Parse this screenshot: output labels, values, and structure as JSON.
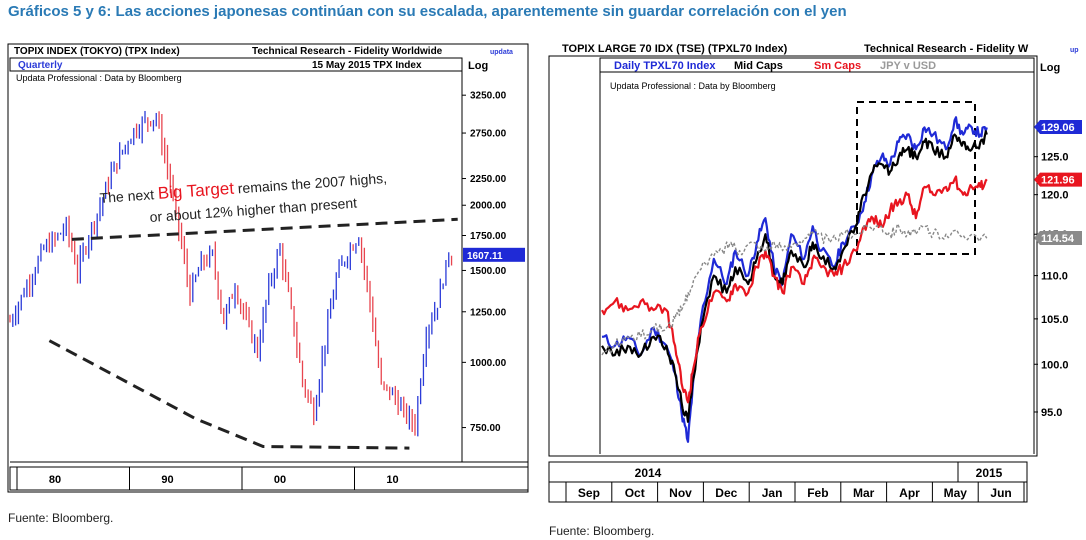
{
  "headline": "Gráficos 5 y 6: Las acciones japonesas continúan con su escalada, aparentemente sin guardar correlación con el yen",
  "charts": {
    "left": {
      "header_left": "TOPIX INDEX (TOKYO) (TPX Index)",
      "header_right": "Technical Research - Fidelity Worldwide",
      "logo": "updata",
      "period": "Quarterly",
      "date_label": "15 May 2015  TPX Index",
      "scale_label": "Log",
      "subheader": "Updata Professional : Data by Bloomberg",
      "annotation_pre": "The next ",
      "annotation_hl": "Big Target",
      "annotation_post": " remains the 2007 highs,",
      "annotation_line2": "or about 12% higher than present",
      "last_value": "1607.11",
      "source": "Fuente: Bloomberg."
    },
    "right": {
      "header_left": "TOPIX LARGE 70 IDX (TSE) (TPXL70 Index)",
      "header_right": "Technical Research - Fidelity W",
      "logo": "up",
      "scale_label": "Log",
      "subheader": "Updata Professional : Data by Bloomberg",
      "last_labels": [
        "129.06",
        "121.96",
        "114.54"
      ],
      "source": "Fuente: Bloomberg."
    }
  },
  "colors": {
    "up": "#2b3bd8",
    "down": "#e8454f",
    "headline": "#2a7ab5",
    "gray": "#8a8a8a"
  },
  "chart_data": [
    {
      "type": "ohlc",
      "title": "TOPIX INDEX (TOKYO) (TPX Index)",
      "y_scale": "log",
      "ylim": [
        650,
        3600
      ],
      "yticks": [
        750,
        1000,
        1250,
        1500,
        1750,
        2000,
        2250,
        2750,
        3250
      ],
      "ytick_labels": [
        "750.00",
        "1000.00",
        "1250.00",
        "1500.00",
        "1750.00",
        "2000.00",
        "2250.00",
        "2750.00",
        "3250.00"
      ],
      "xlim": [
        1976,
        2016
      ],
      "x_labels": [
        {
          "x": 1980,
          "label": "80"
        },
        {
          "x": 1990,
          "label": "90"
        },
        {
          "x": 2000,
          "label": "00"
        },
        {
          "x": 2010,
          "label": "10"
        }
      ],
      "close_path": [
        [
          1976.0,
          1200
        ],
        [
          1977.0,
          1330
        ],
        [
          1978.0,
          1480
        ],
        [
          1979.0,
          1650
        ],
        [
          1980.0,
          1720
        ],
        [
          1981.0,
          1820
        ],
        [
          1982.0,
          1500
        ],
        [
          1983.0,
          1750
        ],
        [
          1984.0,
          1990
        ],
        [
          1985.0,
          2300
        ],
        [
          1986.0,
          2550
        ],
        [
          1987.0,
          2780
        ],
        [
          1988.0,
          2900
        ],
        [
          1989.0,
          2960
        ],
        [
          1990.0,
          2350
        ],
        [
          1991.0,
          1800
        ],
        [
          1992.0,
          1350
        ],
        [
          1993.0,
          1550
        ],
        [
          1994.0,
          1600
        ],
        [
          1995.0,
          1200
        ],
        [
          1996.0,
          1400
        ],
        [
          1997.0,
          1200
        ],
        [
          1998.0,
          1050
        ],
        [
          1999.0,
          1400
        ],
        [
          2000.0,
          1650
        ],
        [
          2001.0,
          1250
        ],
        [
          2002.0,
          920
        ],
        [
          2003.0,
          800
        ],
        [
          2004.0,
          1100
        ],
        [
          2005.0,
          1450
        ],
        [
          2006.0,
          1620
        ],
        [
          2007.0,
          1750
        ],
        [
          2008.0,
          1300
        ],
        [
          2009.0,
          900
        ],
        [
          2010.0,
          870
        ],
        [
          2011.0,
          800
        ],
        [
          2012.0,
          760
        ],
        [
          2013.0,
          1150
        ],
        [
          2014.0,
          1300
        ],
        [
          2015.0,
          1607
        ]
      ],
      "trendlines": [
        {
          "name": "upper",
          "points": [
            [
              1981.5,
              1720
            ],
            [
              2015.8,
              1880
            ]
          ]
        },
        {
          "name": "lower",
          "points": [
            [
              1979.5,
              1100
            ],
            [
              1992.5,
              780
            ],
            [
              1998.5,
              690
            ],
            [
              2011.5,
              685
            ]
          ]
        }
      ],
      "last_value": 1607.11
    },
    {
      "type": "line",
      "title": "TOPIX LARGE 70 IDX (TSE) (TPXL70 Index)",
      "y_scale": "log",
      "ylim": [
        91,
        134
      ],
      "yticks": [
        95,
        100,
        105,
        110,
        115,
        120,
        125
      ],
      "ytick_labels": [
        "95.0",
        "100.0",
        "105.0",
        "110.0",
        "115.0",
        "120.0",
        "125.0"
      ],
      "xlim": [
        0,
        10
      ],
      "months": [
        "Sep",
        "Oct",
        "Nov",
        "Dec",
        "Jan",
        "Feb",
        "Mar",
        "Apr",
        "May",
        "Jun"
      ],
      "years": [
        {
          "x": 1.0,
          "label": "2014"
        },
        {
          "x": 9.0,
          "label": "2015"
        }
      ],
      "legend": [
        "Daily TPXL70 Index",
        "Mid Caps",
        "Sm Caps",
        "JPY v USD"
      ],
      "series": [
        {
          "name": "Daily TPXL70 Index",
          "color": "#1f2ad6",
          "last": 129.06,
          "values": [
            [
              0,
              103
            ],
            [
              0.3,
              102
            ],
            [
              0.6,
              103
            ],
            [
              0.9,
              101
            ],
            [
              1.2,
              104
            ],
            [
              1.5,
              102
            ],
            [
              1.7,
              99
            ],
            [
              1.85,
              95
            ],
            [
              2.0,
              92
            ],
            [
              2.1,
              97
            ],
            [
              2.3,
              105
            ],
            [
              2.6,
              112
            ],
            [
              2.9,
              109
            ],
            [
              3.1,
              113
            ],
            [
              3.4,
              110
            ],
            [
              3.6,
              114
            ],
            [
              3.8,
              117
            ],
            [
              4.0,
              111
            ],
            [
              4.2,
              109
            ],
            [
              4.4,
              115
            ],
            [
              4.7,
              112
            ],
            [
              4.9,
              116
            ],
            [
              5.1,
              113
            ],
            [
              5.4,
              111
            ],
            [
              5.6,
              114
            ],
            [
              5.9,
              116
            ],
            [
              6.1,
              119
            ],
            [
              6.3,
              123
            ],
            [
              6.5,
              125
            ],
            [
              6.7,
              124
            ],
            [
              6.9,
              127
            ],
            [
              7.1,
              128
            ],
            [
              7.3,
              126
            ],
            [
              7.5,
              129
            ],
            [
              7.7,
              128
            ],
            [
              8.0,
              126
            ],
            [
              8.2,
              130
            ],
            [
              8.4,
              128
            ],
            [
              8.6,
              129
            ],
            [
              8.8,
              128
            ],
            [
              8.95,
              129
            ]
          ]
        },
        {
          "name": "Mid Caps",
          "color": "#000000",
          "values": [
            [
              0,
              102
            ],
            [
              0.3,
              101
            ],
            [
              0.6,
              102
            ],
            [
              0.9,
              101
            ],
            [
              1.2,
              103
            ],
            [
              1.5,
              102
            ],
            [
              1.7,
              99
            ],
            [
              1.85,
              96
            ],
            [
              2.0,
              94
            ],
            [
              2.1,
              98
            ],
            [
              2.3,
              104
            ],
            [
              2.6,
              110
            ],
            [
              2.9,
              108
            ],
            [
              3.1,
              111
            ],
            [
              3.4,
              109
            ],
            [
              3.6,
              112
            ],
            [
              3.8,
              115
            ],
            [
              4.0,
              110
            ],
            [
              4.2,
              109
            ],
            [
              4.4,
              113
            ],
            [
              4.7,
              111
            ],
            [
              4.9,
              114
            ],
            [
              5.1,
              112
            ],
            [
              5.4,
              111
            ],
            [
              5.6,
              113
            ],
            [
              5.9,
              116
            ],
            [
              6.1,
              120
            ],
            [
              6.3,
              123
            ],
            [
              6.5,
              124
            ],
            [
              6.7,
              123
            ],
            [
              6.9,
              125
            ],
            [
              7.1,
              126
            ],
            [
              7.3,
              125
            ],
            [
              7.5,
              127
            ],
            [
              7.7,
              126
            ],
            [
              8.0,
              125
            ],
            [
              8.2,
              128
            ],
            [
              8.4,
              127
            ],
            [
              8.6,
              126
            ],
            [
              8.8,
              127
            ],
            [
              8.95,
              128
            ]
          ]
        },
        {
          "name": "Sm Caps",
          "color": "#e8151f",
          "last": 121.96,
          "values": [
            [
              0,
              106
            ],
            [
              0.3,
              107
            ],
            [
              0.6,
              106
            ],
            [
              0.9,
              107
            ],
            [
              1.2,
              106
            ],
            [
              1.5,
              106
            ],
            [
              1.7,
              102
            ],
            [
              1.85,
              98
            ],
            [
              2.0,
              96
            ],
            [
              2.1,
              99
            ],
            [
              2.3,
              104
            ],
            [
              2.6,
              108
            ],
            [
              2.9,
              107
            ],
            [
              3.1,
              109
            ],
            [
              3.4,
              108
            ],
            [
              3.6,
              111
            ],
            [
              3.8,
              113
            ],
            [
              4.0,
              110
            ],
            [
              4.2,
              108
            ],
            [
              4.4,
              111
            ],
            [
              4.7,
              109
            ],
            [
              4.9,
              112
            ],
            [
              5.1,
              111
            ],
            [
              5.4,
              110
            ],
            [
              5.6,
              111
            ],
            [
              5.9,
              113
            ],
            [
              6.1,
              116
            ],
            [
              6.3,
              117
            ],
            [
              6.5,
              116
            ],
            [
              6.7,
              118
            ],
            [
              6.9,
              119
            ],
            [
              7.1,
              120
            ],
            [
              7.3,
              117
            ],
            [
              7.5,
              121
            ],
            [
              7.7,
              120
            ],
            [
              8.0,
              121
            ],
            [
              8.2,
              122
            ],
            [
              8.4,
              120
            ],
            [
              8.6,
              121
            ],
            [
              8.8,
              121
            ],
            [
              8.95,
              122
            ]
          ]
        },
        {
          "name": "JPY v USD",
          "color": "#888888",
          "last": 114.54,
          "values": [
            [
              0,
              101
            ],
            [
              0.3,
              102
            ],
            [
              0.6,
              103
            ],
            [
              0.9,
              103
            ],
            [
              1.2,
              104
            ],
            [
              1.5,
              104
            ],
            [
              1.7,
              105
            ],
            [
              1.85,
              106
            ],
            [
              2.0,
              108
            ],
            [
              2.2,
              110
            ],
            [
              2.5,
              112
            ],
            [
              2.8,
              113
            ],
            [
              3.0,
              114
            ],
            [
              3.2,
              113
            ],
            [
              3.5,
              114
            ],
            [
              3.8,
              113
            ],
            [
              4.0,
              114
            ],
            [
              4.2,
              113
            ],
            [
              4.5,
              114
            ],
            [
              4.8,
              115
            ],
            [
              5.0,
              115
            ],
            [
              5.3,
              114
            ],
            [
              5.6,
              115
            ],
            [
              5.9,
              115
            ],
            [
              6.2,
              116
            ],
            [
              6.5,
              116
            ],
            [
              6.7,
              115
            ],
            [
              6.9,
              116
            ],
            [
              7.1,
              115
            ],
            [
              7.3,
              115
            ],
            [
              7.5,
              116
            ],
            [
              7.7,
              115
            ],
            [
              8.0,
              115
            ],
            [
              8.3,
              115
            ],
            [
              8.6,
              115
            ],
            [
              8.95,
              114.5
            ]
          ]
        }
      ]
    }
  ]
}
